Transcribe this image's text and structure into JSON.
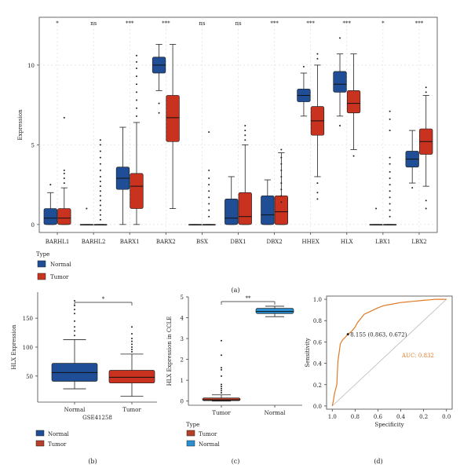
{
  "colors": {
    "normal": "#1f4e96",
    "tumor": "#c8321e",
    "cyan": "#2a8fd0",
    "tumor_c": "#b5402a",
    "roc_line": "#e07b27",
    "diag": "#bbbbbb",
    "grid": "#d9d9d9",
    "axis": "#555555"
  },
  "panel_labels": {
    "a": "(a)",
    "b": "(b)",
    "c": "(c)",
    "d": "(d)"
  },
  "chart_data": [
    {
      "id": "a",
      "type": "box",
      "ylabel": "Expression",
      "ylim": [
        -0.5,
        13
      ],
      "yticks": [
        0,
        5,
        10
      ],
      "categories": [
        "BARHL1",
        "BARHL2",
        "BARX1",
        "BARX2",
        "BSX",
        "DBX1",
        "DBX2",
        "HHEX",
        "HLX",
        "LBX1",
        "LBX2"
      ],
      "significance": [
        "*",
        "ns",
        "***",
        "***",
        "ns",
        "ns",
        "***",
        "***",
        "***",
        "*",
        "***"
      ],
      "legend_title": "Type",
      "legend_items": [
        "Normal",
        "Tumor"
      ],
      "series": [
        {
          "name": "Normal",
          "boxes": [
            [
              0,
              0,
              0.4,
              1.0,
              2.0
            ],
            [
              0,
              0,
              0,
              0,
              0
            ],
            [
              0,
              2.2,
              2.9,
              3.6,
              6.1
            ],
            [
              8.4,
              9.5,
              10.0,
              10.5,
              11.3
            ],
            [
              0,
              0,
              0,
              0,
              0
            ],
            [
              0,
              0,
              0.4,
              1.6,
              3.0
            ],
            [
              0,
              0,
              0.6,
              1.8,
              2.8
            ],
            [
              6.8,
              7.7,
              8.1,
              8.5,
              9.5
            ],
            [
              6.8,
              8.3,
              8.8,
              9.6,
              10.7
            ],
            [
              0,
              0,
              0,
              0,
              0
            ],
            [
              2.6,
              3.6,
              4.1,
              4.6,
              5.9
            ]
          ],
          "outliers": [
            [
              2.5
            ],
            [
              1.0
            ],
            [],
            [
              7.6,
              7.0
            ],
            [],
            [],
            [],
            [
              9.9
            ],
            [
              6.2,
              11.7
            ],
            [
              1.0
            ],
            [
              2.3
            ]
          ]
        },
        {
          "name": "Tumor",
          "boxes": [
            [
              0,
              0,
              0.4,
              1.0,
              2.3
            ],
            [
              0,
              0,
              0,
              0,
              0
            ],
            [
              0,
              1.0,
              2.4,
              3.2,
              6.4
            ],
            [
              1.0,
              5.2,
              6.7,
              8.1,
              11.3
            ],
            [
              0,
              0,
              0,
              0,
              0
            ],
            [
              0,
              0,
              0.5,
              2.0,
              5.0
            ],
            [
              0,
              0,
              0.8,
              1.8,
              4.5
            ],
            [
              3.0,
              5.6,
              6.5,
              7.4,
              10.0
            ],
            [
              4.7,
              7.0,
              7.6,
              8.4,
              10.7
            ],
            [
              0,
              0,
              0,
              0,
              0
            ],
            [
              2.4,
              4.4,
              5.2,
              6.0,
              8.1
            ]
          ],
          "outliers": [
            [
              2.6,
              2.9,
              3.2,
              3.4,
              6.7
            ],
            [
              0.3,
              0.6,
              0.9,
              1.2,
              1.5,
              1.8,
              2.1,
              2.4,
              2.7,
              3.0,
              3.4,
              3.8,
              4.2,
              4.6,
              5.0,
              5.3
            ],
            [
              6.8,
              7.3,
              7.8,
              8.3,
              8.8,
              9.3,
              9.8,
              10.2,
              10.6
            ],
            [],
            [
              0.5,
              0.9,
              1.3,
              1.7,
              2.1,
              2.5,
              2.9,
              3.4,
              5.8
            ],
            [
              5.3,
              5.6,
              5.9,
              6.2
            ],
            [
              4.7,
              4.2,
              3.8,
              3.4,
              3.0,
              2.6,
              2.2,
              1.8,
              1.4
            ],
            [
              2.6,
              2.0,
              1.6,
              10.4,
              10.7
            ],
            [
              4.3
            ],
            [
              0.5,
              0.9,
              1.3,
              1.7,
              2.1,
              2.5,
              2.9,
              3.3,
              3.8,
              4.2,
              5.9,
              6.6,
              7.1
            ],
            [
              1.5,
              1.0,
              8.3,
              8.6
            ]
          ]
        }
      ]
    },
    {
      "id": "b",
      "type": "box",
      "ylabel": "HLX Expression",
      "xlabel": "GSE41258",
      "ylim": [
        5,
        195
      ],
      "yticks": [
        50,
        100,
        150
      ],
      "categories": [
        "Normal",
        "Tumor"
      ],
      "significance": [
        "*"
      ],
      "legend_items": [
        "Normal",
        "Tumor"
      ],
      "boxes": [
        [
          28,
          41,
          56,
          72,
          113
        ],
        [
          15,
          38,
          48,
          60,
          88
        ]
      ],
      "outliers": [
        [
          120,
          128,
          135,
          145,
          158,
          165,
          172,
          180
        ],
        [
          92,
          96,
          100,
          105,
          110,
          115,
          123,
          135
        ]
      ]
    },
    {
      "id": "c",
      "type": "box",
      "ylabel": "HLX Expression in CCLE",
      "ylim": [
        -0.2,
        5
      ],
      "yticks": [
        0,
        1,
        2,
        3,
        4,
        5
      ],
      "categories": [
        "Tumor",
        "Normal"
      ],
      "significance": [
        "**"
      ],
      "legend_title": "Type",
      "legend_items": [
        "Tumor",
        "Normal"
      ],
      "boxes": [
        [
          0,
          0.02,
          0.06,
          0.15,
          0.3
        ],
        [
          4.05,
          4.2,
          4.3,
          4.45,
          4.55
        ]
      ],
      "outliers": [
        [
          0.4,
          0.5,
          0.6,
          0.7,
          0.8,
          1.2,
          1.5,
          1.6,
          2.2,
          2.9
        ],
        []
      ]
    },
    {
      "id": "d",
      "type": "line",
      "xlabel": "Specificity",
      "ylabel": "Sensitivity",
      "xlim": [
        1.05,
        -0.05
      ],
      "ylim": [
        -0.03,
        1.03
      ],
      "xticks": [
        1.0,
        0.8,
        0.6,
        0.4,
        0.2,
        0.0
      ],
      "yticks": [
        0.0,
        0.2,
        0.4,
        0.6,
        0.8,
        1.0
      ],
      "auc_label": "AUC: 0.832",
      "cutoff_label": "8.155 (0.863, 0.672)",
      "cutoff": [
        0.863,
        0.672
      ],
      "roc": [
        [
          1.0,
          0.0
        ],
        [
          0.99,
          0.05
        ],
        [
          0.98,
          0.12
        ],
        [
          0.96,
          0.2
        ],
        [
          0.955,
          0.32
        ],
        [
          0.95,
          0.42
        ],
        [
          0.94,
          0.5
        ],
        [
          0.93,
          0.58
        ],
        [
          0.91,
          0.62
        ],
        [
          0.89,
          0.64
        ],
        [
          0.863,
          0.672
        ],
        [
          0.83,
          0.7
        ],
        [
          0.8,
          0.74
        ],
        [
          0.78,
          0.78
        ],
        [
          0.75,
          0.82
        ],
        [
          0.72,
          0.86
        ],
        [
          0.68,
          0.88
        ],
        [
          0.64,
          0.9
        ],
        [
          0.6,
          0.92
        ],
        [
          0.55,
          0.94
        ],
        [
          0.5,
          0.95
        ],
        [
          0.45,
          0.96
        ],
        [
          0.4,
          0.97
        ],
        [
          0.35,
          0.975
        ],
        [
          0.3,
          0.98
        ],
        [
          0.25,
          0.985
        ],
        [
          0.2,
          0.99
        ],
        [
          0.15,
          0.995
        ],
        [
          0.1,
          1.0
        ],
        [
          0.0,
          1.0
        ]
      ]
    }
  ]
}
